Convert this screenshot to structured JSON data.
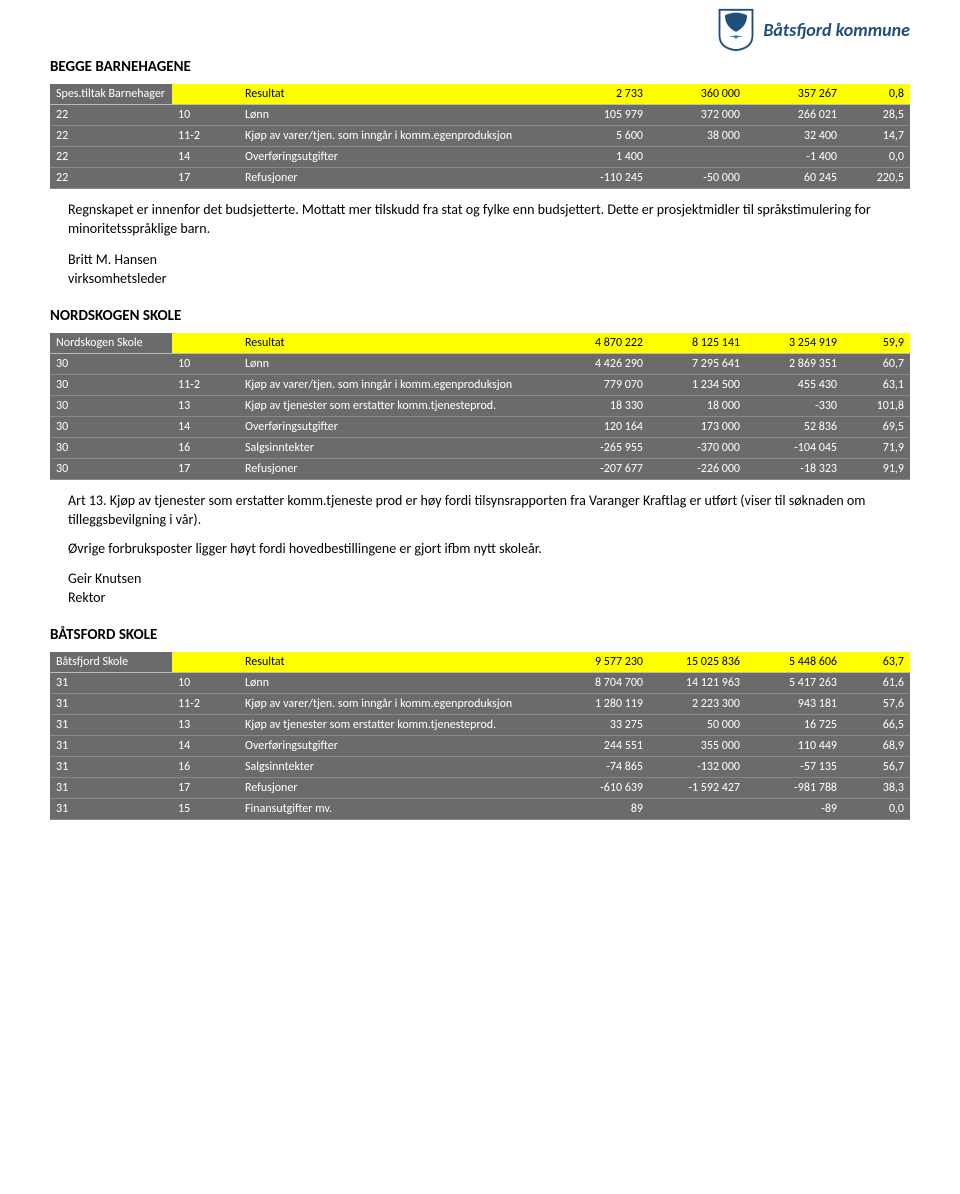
{
  "logo_text": "Båtsfjord kommune",
  "sections": [
    {
      "title": "BEGGE BARNEHAGENE",
      "header_label": "Spes.tiltak Barnehager",
      "header_result_label": "Resultat",
      "header_vals": [
        "2 733",
        "360 000",
        "357 267",
        "0,8"
      ],
      "rows": [
        {
          "a": "22",
          "b": "10",
          "c": "Lønn",
          "d": "105 979",
          "e": "372 000",
          "f": "266 021",
          "g": "28,5"
        },
        {
          "a": "22",
          "b": "11-2",
          "c": "Kjøp av varer/tjen. som inngår i komm.egenproduksjon",
          "d": "5 600",
          "e": "38 000",
          "f": "32 400",
          "g": "14,7"
        },
        {
          "a": "22",
          "b": "14",
          "c": "Overføringsutgifter",
          "d": "1 400",
          "e": "",
          "f": "-1 400",
          "g": "0,0"
        },
        {
          "a": "22",
          "b": "17",
          "c": "Refusjoner",
          "d": "-110 245",
          "e": "-50 000",
          "f": "60 245",
          "g": "220,5"
        }
      ],
      "notes": [
        "Regnskapet er innenfor det budsjetterte. Mottatt mer tilskudd fra stat og fylke enn budsjettert. Dette er prosjektmidler til språkstimulering for minoritetsspråklige barn."
      ],
      "sig": "Britt M. Hansen",
      "role": "virksomhetsleder"
    },
    {
      "title": "NORDSKOGEN SKOLE",
      "header_label": "Nordskogen Skole",
      "header_result_label": "Resultat",
      "header_vals": [
        "4 870 222",
        "8 125 141",
        "3 254 919",
        "59,9"
      ],
      "rows": [
        {
          "a": "30",
          "b": "10",
          "c": "Lønn",
          "d": "4 426 290",
          "e": "7 295 641",
          "f": "2 869 351",
          "g": "60,7"
        },
        {
          "a": "30",
          "b": "11-2",
          "c": "Kjøp av varer/tjen. som inngår i komm.egenproduksjon",
          "d": "779 070",
          "e": "1 234 500",
          "f": "455 430",
          "g": "63,1"
        },
        {
          "a": "30",
          "b": "13",
          "c": "Kjøp av tjenester som erstatter komm.tjenesteprod.",
          "d": "18 330",
          "e": "18 000",
          "f": "-330",
          "g": "101,8"
        },
        {
          "a": "30",
          "b": "14",
          "c": "Overføringsutgifter",
          "d": "120 164",
          "e": "173 000",
          "f": "52 836",
          "g": "69,5"
        },
        {
          "a": "30",
          "b": "16",
          "c": "Salgsinntekter",
          "d": "-265 955",
          "e": "-370 000",
          "f": "-104 045",
          "g": "71,9"
        },
        {
          "a": "30",
          "b": "17",
          "c": "Refusjoner",
          "d": "-207 677",
          "e": "-226 000",
          "f": "-18 323",
          "g": "91,9"
        }
      ],
      "notes": [
        "Art 13. Kjøp av tjenester som  erstatter komm.tjeneste prod er høy fordi tilsynsrapporten fra Varanger Kraftlag er utført (viser til søknaden om tilleggsbevilgning i vår).",
        "Øvrige forbruksposter ligger høyt fordi hovedbestillingene er gjort ifbm nytt skoleår."
      ],
      "sig": "Geir Knutsen",
      "role": "Rektor"
    },
    {
      "title": "BÅTSFORD SKOLE",
      "header_label": "Båtsfjord Skole",
      "header_result_label": "Resultat",
      "header_vals": [
        "9 577 230",
        "15 025 836",
        "5 448 606",
        "63,7"
      ],
      "rows": [
        {
          "a": "31",
          "b": "10",
          "c": "Lønn",
          "d": "8 704 700",
          "e": "14 121 963",
          "f": "5 417 263",
          "g": "61,6"
        },
        {
          "a": "31",
          "b": "11-2",
          "c": "Kjøp av varer/tjen. som inngår i komm.egenproduksjon",
          "d": "1 280 119",
          "e": "2 223 300",
          "f": "943 181",
          "g": "57,6"
        },
        {
          "a": "31",
          "b": "13",
          "c": "Kjøp av tjenester som erstatter komm.tjenesteprod.",
          "d": "33 275",
          "e": "50 000",
          "f": "16 725",
          "g": "66,5"
        },
        {
          "a": "31",
          "b": "14",
          "c": "Overføringsutgifter",
          "d": "244 551",
          "e": "355 000",
          "f": "110 449",
          "g": "68,9"
        },
        {
          "a": "31",
          "b": "16",
          "c": "Salgsinntekter",
          "d": "-74 865",
          "e": "-132 000",
          "f": "-57 135",
          "g": "56,7"
        },
        {
          "a": "31",
          "b": "17",
          "c": "Refusjoner",
          "d": "-610 639",
          "e": "-1 592 427",
          "f": "-981 788",
          "g": "38,3"
        },
        {
          "a": "31",
          "b": "15",
          "c": "Finansutgifter mv.",
          "d": "89",
          "e": "",
          "f": "-89",
          "g": "0,0"
        }
      ],
      "notes": [],
      "sig": "",
      "role": ""
    }
  ]
}
